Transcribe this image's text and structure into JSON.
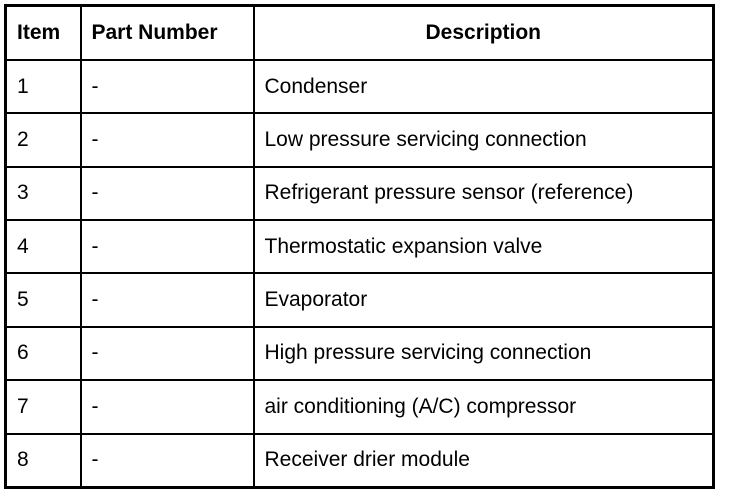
{
  "table": {
    "headers": [
      "Item",
      "Part Number",
      "Description"
    ],
    "rows": [
      [
        "1",
        "-",
        "Condenser"
      ],
      [
        "2",
        "-",
        "Low pressure servicing connection"
      ],
      [
        "3",
        "-",
        "Refrigerant pressure sensor (reference)"
      ],
      [
        "4",
        "-",
        "Thermostatic expansion valve"
      ],
      [
        "5",
        "-",
        "Evaporator"
      ],
      [
        "6",
        "-",
        "High pressure servicing connection"
      ],
      [
        "7",
        "-",
        "air conditioning (A/C) compressor"
      ],
      [
        "8",
        "-",
        "Receiver drier module"
      ]
    ]
  }
}
